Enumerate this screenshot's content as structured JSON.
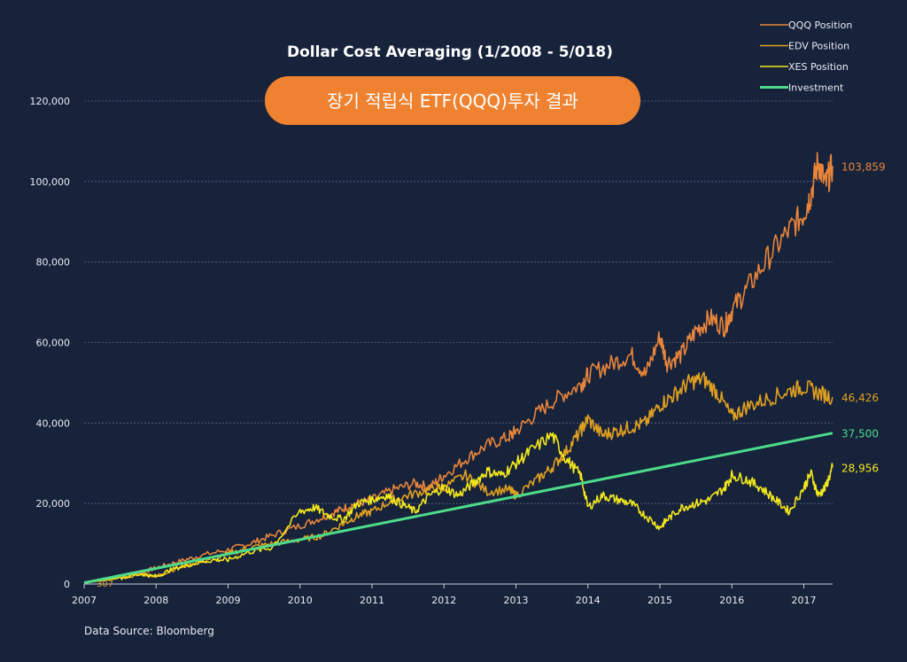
{
  "chart_data": {
    "type": "line",
    "title": "Dollar Cost Averaging (1/2008 - 5/018)",
    "banner": "장기 적립식 ETF(QQQ)투자 결과",
    "source": "Data Source: Bloomberg",
    "xlabel": "",
    "ylabel": "",
    "xlim": [
      2007,
      2017.4
    ],
    "ylim": [
      0,
      120000
    ],
    "x_ticks": [
      "2007",
      "2008",
      "2009",
      "2010",
      "2011",
      "2012",
      "2013",
      "2014",
      "2015",
      "2016",
      "2017"
    ],
    "y_ticks": [
      "0",
      "20,000",
      "40,000",
      "60,000",
      "80,000",
      "100,000",
      "120,000"
    ],
    "grid": true,
    "legend_position": "top-right",
    "start_label": "307",
    "series": [
      {
        "name": "QQQ Position",
        "color": "#e8853a",
        "end_label": "103,859",
        "x": [
          2007.0,
          2007.5,
          2007.8,
          2008.0,
          2008.3,
          2008.6,
          2009.0,
          2009.3,
          2009.6,
          2010.0,
          2010.3,
          2010.5,
          2010.7,
          2011.0,
          2011.3,
          2011.6,
          2011.8,
          2012.0,
          2012.3,
          2012.6,
          2012.9,
          2013.0,
          2013.3,
          2013.6,
          2013.9,
          2014.0,
          2014.3,
          2014.6,
          2014.8,
          2015.0,
          2015.1,
          2015.3,
          2015.5,
          2015.7,
          2015.9,
          2016.0,
          2016.2,
          2016.5,
          2016.8,
          2017.0,
          2017.1,
          2017.2,
          2017.3,
          2017.4
        ],
        "y": [
          300,
          2000,
          3000,
          4000,
          5500,
          7000,
          8500,
          10000,
          12000,
          14500,
          16500,
          18000,
          19500,
          21000,
          23500,
          25000,
          24000,
          27000,
          31000,
          34500,
          36500,
          38000,
          42500,
          46500,
          49500,
          52000,
          54500,
          57000,
          52000,
          61500,
          55000,
          57000,
          63000,
          66000,
          64000,
          68000,
          73000,
          81000,
          88000,
          92000,
          97000,
          105000,
          99000,
          103859
        ]
      },
      {
        "name": "EDV Position",
        "color": "#e0a020",
        "end_label": "46,426",
        "x": [
          2007.0,
          2007.5,
          2007.8,
          2008.0,
          2008.3,
          2008.6,
          2009.0,
          2009.3,
          2009.6,
          2010.0,
          2010.3,
          2010.6,
          2010.8,
          2011.0,
          2011.3,
          2011.6,
          2011.9,
          2012.0,
          2012.3,
          2012.6,
          2012.9,
          2013.0,
          2013.3,
          2013.5,
          2013.7,
          2013.9,
          2014.0,
          2014.2,
          2014.4,
          2014.6,
          2014.8,
          2015.0,
          2015.2,
          2015.4,
          2015.6,
          2015.8,
          2016.0,
          2016.2,
          2016.5,
          2016.8,
          2017.0,
          2017.2,
          2017.4
        ],
        "y": [
          300,
          1500,
          2500,
          2000,
          4000,
          5500,
          7500,
          9000,
          10000,
          11000,
          12000,
          15000,
          17000,
          18000,
          21000,
          22500,
          24000,
          24000,
          27000,
          23000,
          23500,
          22000,
          26000,
          29000,
          33000,
          38000,
          41000,
          37000,
          38000,
          39000,
          40000,
          44500,
          47000,
          50000,
          51000,
          47500,
          41500,
          44000,
          46000,
          48000,
          49000,
          47500,
          46426
        ]
      },
      {
        "name": "XES Position",
        "color": "#f2e81c",
        "end_label": "28,956",
        "x": [
          2007.0,
          2007.5,
          2007.8,
          2008.0,
          2008.2,
          2008.5,
          2008.8,
          2009.0,
          2009.3,
          2009.6,
          2010.0,
          2010.2,
          2010.4,
          2010.6,
          2010.8,
          2011.0,
          2011.2,
          2011.4,
          2011.6,
          2011.8,
          2012.0,
          2012.2,
          2012.4,
          2012.6,
          2012.8,
          2013.0,
          2013.2,
          2013.5,
          2013.7,
          2013.9,
          2014.0,
          2014.2,
          2014.4,
          2014.6,
          2014.8,
          2015.0,
          2015.1,
          2015.3,
          2015.5,
          2015.7,
          2015.9,
          2016.0,
          2016.2,
          2016.4,
          2016.6,
          2016.8,
          2017.0,
          2017.1,
          2017.2,
          2017.3,
          2017.4
        ],
        "y": [
          300,
          1500,
          2500,
          1800,
          3500,
          5000,
          6000,
          6000,
          8000,
          9000,
          18000,
          19000,
          17000,
          16000,
          20000,
          21000,
          22000,
          20000,
          18000,
          22000,
          24000,
          22000,
          25000,
          28000,
          27000,
          30000,
          33000,
          37000,
          31000,
          27000,
          19000,
          22000,
          21000,
          20000,
          17000,
          14000,
          16000,
          19000,
          20000,
          21000,
          24000,
          27000,
          26000,
          24000,
          21000,
          18000,
          24000,
          27500,
          22000,
          24000,
          28956
        ]
      },
      {
        "name": "Investment",
        "color": "#4ddb8a",
        "end_label": "37,500",
        "x": [
          2007.0,
          2017.4
        ],
        "y": [
          300,
          37500
        ]
      }
    ]
  }
}
